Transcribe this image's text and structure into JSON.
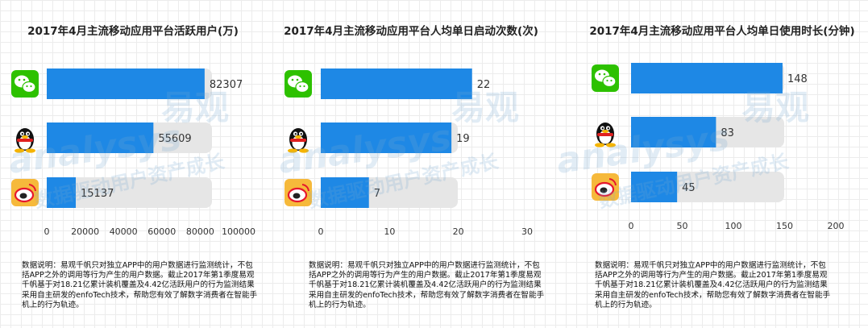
{
  "colors": {
    "bar": "#1e88e5",
    "track": "#e6e6e6",
    "label": "#333333"
  },
  "icons": [
    "wechat-icon",
    "qq-icon",
    "weibo-icon"
  ],
  "note": "数据说明：易观千帆只对独立APP中的用户数据进行监测统计，不包括APP之外的调用等行为产生的用户数据。截止2017年第1季度易观千帆基于对18.21亿累计装机覆盖及4.42亿活跃用户的行为监测结果采用自主研发的enfoTech技术，帮助您有效了解数字消费者在智能手机上的行为轨迹。",
  "watermark": {
    "brand": "易观",
    "slogan": "数据驱动用户资产成长",
    "latin": "analysys"
  },
  "chart_data": [
    {
      "type": "bar",
      "orientation": "horizontal",
      "title": "2017年4月主流移动应用平台活跃用户(万)",
      "categories": [
        "微信",
        "QQ",
        "微博"
      ],
      "values": [
        82307,
        55609,
        15137
      ],
      "value_labels": [
        "82307",
        "55609",
        "15137"
      ],
      "xlim": [
        0,
        100000
      ],
      "xticks": [
        "0",
        "20000",
        "40000",
        "60000",
        "80000",
        "100000"
      ],
      "grid": false
    },
    {
      "type": "bar",
      "orientation": "horizontal",
      "title": "2017年4月主流移动应用平台人均单日启动次数(次)",
      "categories": [
        "微信",
        "QQ",
        "微博"
      ],
      "values": [
        22,
        19,
        7
      ],
      "value_labels": [
        "22",
        "19",
        "7"
      ],
      "xlim": [
        0,
        30
      ],
      "xticks": [
        "0",
        "10",
        "20",
        "30"
      ],
      "grid": false
    },
    {
      "type": "bar",
      "orientation": "horizontal",
      "title": "2017年4月主流移动应用平台人均单日使用时长(分钟)",
      "categories": [
        "微信",
        "QQ",
        "微博"
      ],
      "values": [
        148,
        83,
        45
      ],
      "value_labels": [
        "148",
        "83",
        "45"
      ],
      "xlim": [
        0,
        200
      ],
      "xticks": [
        "0",
        "50",
        "100",
        "150",
        "200"
      ],
      "grid": false
    }
  ]
}
